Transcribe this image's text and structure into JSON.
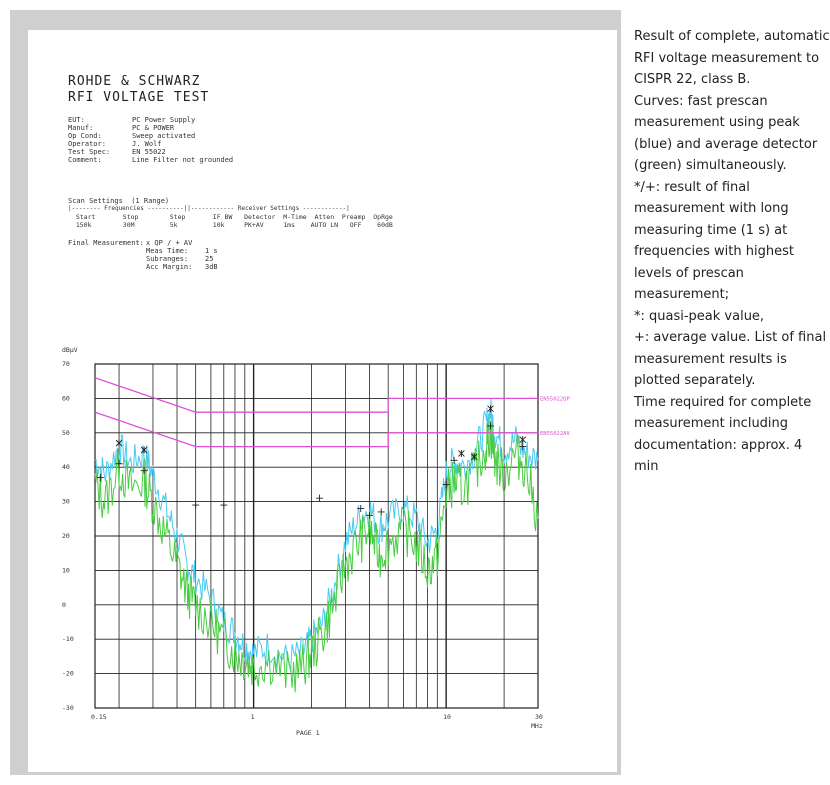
{
  "report": {
    "company": "ROHDE & SCHWARZ",
    "test_title": "RFI VOLTAGE TEST",
    "fields": [
      {
        "label": "EUT:",
        "value": "PC Power Supply"
      },
      {
        "label": "Manuf:",
        "value": "PC & POWER"
      },
      {
        "label": "Op Cond:",
        "value": "Sweep activated"
      },
      {
        "label": "Operator:",
        "value": "J. Wolf"
      },
      {
        "label": "Test Spec:",
        "value": "EN 55022"
      },
      {
        "label": "Comment:",
        "value": "Line Filter not grounded"
      }
    ],
    "scan_heading": "Scan Settings  (1 Range)",
    "scan_divider": "|-------- Frequencies ----------||------------ Receiver Settings ------------|",
    "scan_columns": "  Start       Stop        Step       IF BW   Detector  M-Time  Atten  Preamp  OpRge",
    "scan_values": "  150k        30M         5k         10k     PK+AV     1ms    AUTO LN   OFF    60dB",
    "final_label": "Final Measurement:",
    "final_values": "x QP / + AV\nMeas Time:    1 s\nSubranges:    25\nAcc Margin:   3dB",
    "page_label": "PAGE 1"
  },
  "caption": {
    "paragraphs": [
      "Result of complete, automatic RFI voltage measurement to CISPR 22, class B.",
      "Curves: fast prescan measurement using peak (blue) and average detector (green) simultaneously.",
      "*/+: result of final measurement with long measuring time (1 s) at frequencies with highest levels of prescan measurement;",
      "*: quasi-peak value,",
      "+: average value. List of final measurement results is plotted separately.",
      "Time required for complete measurement including documentation: approx. 4 min"
    ]
  },
  "colors": {
    "peak_trace": "#49c9ef",
    "average_trace": "#48cc42",
    "limit_lines": "#e04fd8",
    "grid": "#222222"
  },
  "chart_data": {
    "type": "line",
    "x_scale": "log",
    "ylabel": "dBµV",
    "xunit": "MHz",
    "ylim": [
      -30,
      70
    ],
    "xlim": [
      0.15,
      30
    ],
    "y_ticks": [
      "70",
      "60",
      "50",
      "40",
      "30",
      "20",
      "10",
      "0",
      "-10",
      "-20",
      "-30"
    ],
    "x_tick_labels": [
      {
        "value": 0.15,
        "label": "0.15"
      },
      {
        "value": 1,
        "label": "1"
      },
      {
        "value": 10,
        "label": "10"
      },
      {
        "value": 30,
        "label": "30"
      }
    ],
    "limit_labels": [
      "EN55022QP",
      "EN55022AV"
    ],
    "limits": [
      {
        "name": "EN55022QP",
        "points": [
          [
            0.15,
            66
          ],
          [
            0.5,
            56
          ],
          [
            5,
            56
          ],
          [
            5,
            60
          ],
          [
            30,
            60
          ]
        ]
      },
      {
        "name": "EN55022AV",
        "points": [
          [
            0.15,
            56
          ],
          [
            0.5,
            46
          ],
          [
            5,
            46
          ],
          [
            5,
            50
          ],
          [
            30,
            50
          ]
        ]
      }
    ],
    "series": [
      {
        "name": "peak",
        "points": [
          [
            0.15,
            42
          ],
          [
            0.17,
            38
          ],
          [
            0.2,
            46
          ],
          [
            0.23,
            41
          ],
          [
            0.27,
            44
          ],
          [
            0.3,
            38
          ],
          [
            0.35,
            28
          ],
          [
            0.4,
            20
          ],
          [
            0.45,
            12
          ],
          [
            0.5,
            8
          ],
          [
            0.6,
            2
          ],
          [
            0.7,
            -5
          ],
          [
            0.8,
            -8
          ],
          [
            0.9,
            -12
          ],
          [
            1.0,
            -14
          ],
          [
            1.2,
            -12
          ],
          [
            1.5,
            -16
          ],
          [
            1.8,
            -14
          ],
          [
            2.0,
            -10
          ],
          [
            2.3,
            -5
          ],
          [
            2.6,
            5
          ],
          [
            3.0,
            18
          ],
          [
            3.5,
            25
          ],
          [
            4.0,
            28
          ],
          [
            4.5,
            22
          ],
          [
            5.0,
            25
          ],
          [
            6.0,
            28
          ],
          [
            7.0,
            25
          ],
          [
            8.0,
            18
          ],
          [
            9.0,
            22
          ],
          [
            10.0,
            38
          ],
          [
            11.0,
            42
          ],
          [
            12.0,
            40
          ],
          [
            14.0,
            44
          ],
          [
            16.0,
            52
          ],
          [
            17.0,
            56
          ],
          [
            18.0,
            50
          ],
          [
            20.0,
            45
          ],
          [
            23.0,
            48
          ],
          [
            26.0,
            44
          ],
          [
            30.0,
            42
          ]
        ]
      },
      {
        "name": "average",
        "points": [
          [
            0.15,
            35
          ],
          [
            0.17,
            30
          ],
          [
            0.2,
            40
          ],
          [
            0.23,
            34
          ],
          [
            0.27,
            36
          ],
          [
            0.3,
            30
          ],
          [
            0.35,
            20
          ],
          [
            0.4,
            12
          ],
          [
            0.45,
            4
          ],
          [
            0.5,
            0
          ],
          [
            0.6,
            -5
          ],
          [
            0.7,
            -10
          ],
          [
            0.8,
            -14
          ],
          [
            0.9,
            -16
          ],
          [
            1.0,
            -18
          ],
          [
            1.2,
            -16
          ],
          [
            1.5,
            -20
          ],
          [
            1.8,
            -18
          ],
          [
            2.0,
            -14
          ],
          [
            2.3,
            -8
          ],
          [
            2.6,
            0
          ],
          [
            3.0,
            12
          ],
          [
            3.5,
            18
          ],
          [
            4.0,
            22
          ],
          [
            4.5,
            14
          ],
          [
            5.0,
            18
          ],
          [
            6.0,
            22
          ],
          [
            7.0,
            18
          ],
          [
            8.0,
            10
          ],
          [
            9.0,
            14
          ],
          [
            10.0,
            32
          ],
          [
            11.0,
            36
          ],
          [
            12.0,
            34
          ],
          [
            14.0,
            38
          ],
          [
            16.0,
            46
          ],
          [
            17.0,
            50
          ],
          [
            18.0,
            42
          ],
          [
            20.0,
            38
          ],
          [
            23.0,
            44
          ],
          [
            26.0,
            40
          ],
          [
            30.0,
            25
          ]
        ]
      }
    ],
    "final_qp": [
      [
        0.2,
        47
      ],
      [
        0.27,
        45
      ],
      [
        12,
        44
      ],
      [
        14,
        43
      ],
      [
        17,
        57
      ],
      [
        25,
        48
      ]
    ],
    "final_av": [
      [
        0.16,
        37
      ],
      [
        0.2,
        41
      ],
      [
        0.27,
        39
      ],
      [
        0.5,
        29
      ],
      [
        0.7,
        29
      ],
      [
        2.2,
        31
      ],
      [
        3.6,
        28
      ],
      [
        4.0,
        26
      ],
      [
        4.6,
        27
      ],
      [
        10.0,
        35
      ],
      [
        11.0,
        42
      ],
      [
        17.0,
        52
      ],
      [
        25.0,
        46
      ]
    ]
  }
}
